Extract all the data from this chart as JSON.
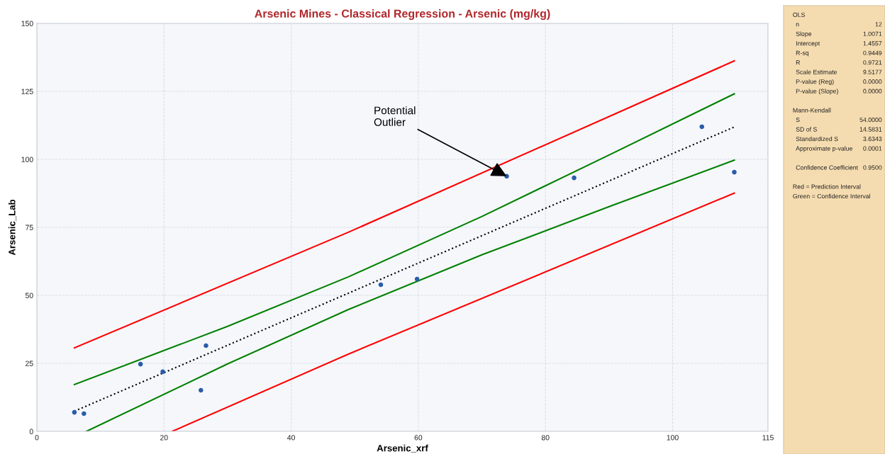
{
  "chart_data": [
    {
      "type": "scatter",
      "title": "Arsenic Mines - Classical Regression - Arsenic (mg/kg)",
      "xlabel": "Arsenic_xrf",
      "ylabel": "Arsenic_Lab",
      "xlim": [
        0,
        115
      ],
      "ylim": [
        0,
        150
      ],
      "xticks": [
        0,
        20,
        40,
        60,
        80,
        100,
        115
      ],
      "yticks": [
        0,
        25,
        50,
        75,
        100,
        125,
        150
      ],
      "grid": true,
      "series": [
        {
          "type": "line",
          "color": "#ff0000",
          "line_style": "solid",
          "marker": "none",
          "x": [
            5.9,
            49,
            109.7
          ],
          "values": [
            30.7,
            73.2,
            136.2
          ]
        },
        {
          "type": "line",
          "color": "#008000",
          "line_style": "solid",
          "marker": "none",
          "x": [
            5.9,
            30,
            49,
            70,
            90,
            109.7
          ],
          "values": [
            17.2,
            38.6,
            56.8,
            79.0,
            101.6,
            124.1
          ]
        },
        {
          "type": "line",
          "color": "#000000",
          "line_style": "dotted",
          "marker": "none",
          "x": [
            5.9,
            109.7
          ],
          "values": [
            7.4,
            111.9
          ]
        },
        {
          "type": "line",
          "color": "#008000",
          "line_style": "solid",
          "marker": "none",
          "x": [
            7.8,
            30,
            49,
            70,
            90,
            109.7
          ],
          "values": [
            0,
            24.8,
            44.8,
            64.9,
            82.6,
            99.7
          ]
        },
        {
          "type": "line",
          "color": "#ff0000",
          "line_style": "solid",
          "marker": "none",
          "x": [
            21.3,
            49,
            109.7
          ],
          "values": [
            0,
            28.4,
            87.6
          ]
        },
        {
          "type": "scatter",
          "color": "#2a5caa",
          "marker": "circle",
          "x": [
            5.9,
            7.4,
            16.3,
            19.8,
            25.8,
            26.6,
            54.1,
            59.8,
            73.9,
            84.5,
            104.6,
            109.7
          ],
          "values": [
            7.0,
            6.5,
            24.7,
            21.9,
            15.1,
            31.5,
            53.9,
            56.0,
            93.8,
            93.2,
            112.0,
            95.3
          ]
        }
      ],
      "annotations": [
        {
          "text": "Potential\nOutlier",
          "x": 73.9,
          "y": 93.8
        }
      ]
    },
    {
      "type": "other",
      "annotations": [
        "OLS",
        "n",
        "12",
        "Slope",
        "1.0071",
        "Intercept",
        "1.4557",
        "R-sq",
        "0.9449",
        "R",
        "0.9721",
        "Scale Estimate",
        "9.5177",
        "P-value (Reg)",
        "0.0000",
        "P-value (Slope)",
        "0.0000",
        "Mann-Kendall",
        "S",
        "54.0000",
        "SD of S",
        "14.5831",
        "Standardized S",
        "3.6343",
        "Approximate p-value",
        "0.0001",
        "Confidence Coefficient",
        "0.9500",
        "Red = Prediction Interval",
        "Green = Confidence Interval"
      ]
    }
  ]
}
